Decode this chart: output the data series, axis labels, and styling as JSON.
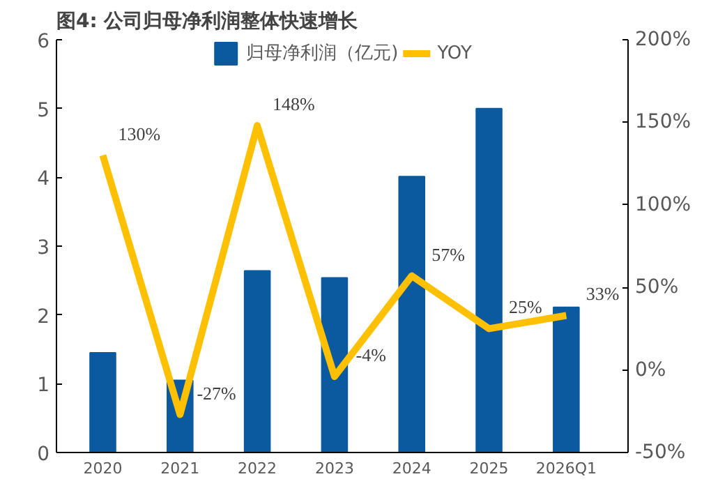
{
  "chart_data": {
    "type": "bar",
    "title": "图4: 公司归母净利润整体快速增长",
    "categories": [
      "2020",
      "2021",
      "2022",
      "2023",
      "2024",
      "2025",
      "2026Q1"
    ],
    "series": [
      {
        "name": "归母净利润（亿元)",
        "color": "#0b5a9f",
        "values": [
          1.45,
          1.05,
          2.64,
          2.54,
          4.01,
          5.0,
          2.11
        ]
      },
      {
        "name": "YOY",
        "type": "line",
        "axis": "y2",
        "color": "#ffc000",
        "values": [
          130,
          -27,
          148,
          -4,
          57,
          25,
          33
        ],
        "value_labels": [
          "130%",
          "-27%",
          "148%",
          "-4%",
          "57%",
          "25%",
          "33%"
        ]
      }
    ],
    "ylim": [
      0,
      6
    ],
    "yticks": [
      0,
      1,
      2,
      3,
      4,
      5,
      6
    ],
    "y2lim": [
      -50,
      200
    ],
    "y2ticks": [
      {
        "value": -50,
        "label": "-50%"
      },
      {
        "value": 0,
        "label": "0%"
      },
      {
        "value": 50,
        "label": "50%"
      },
      {
        "value": 100,
        "label": "100%"
      },
      {
        "value": 150,
        "label": "150%"
      },
      {
        "value": 200,
        "label": "200%"
      }
    ],
    "grid": false,
    "legend": "top",
    "marker": "none",
    "line_style": "solid"
  }
}
